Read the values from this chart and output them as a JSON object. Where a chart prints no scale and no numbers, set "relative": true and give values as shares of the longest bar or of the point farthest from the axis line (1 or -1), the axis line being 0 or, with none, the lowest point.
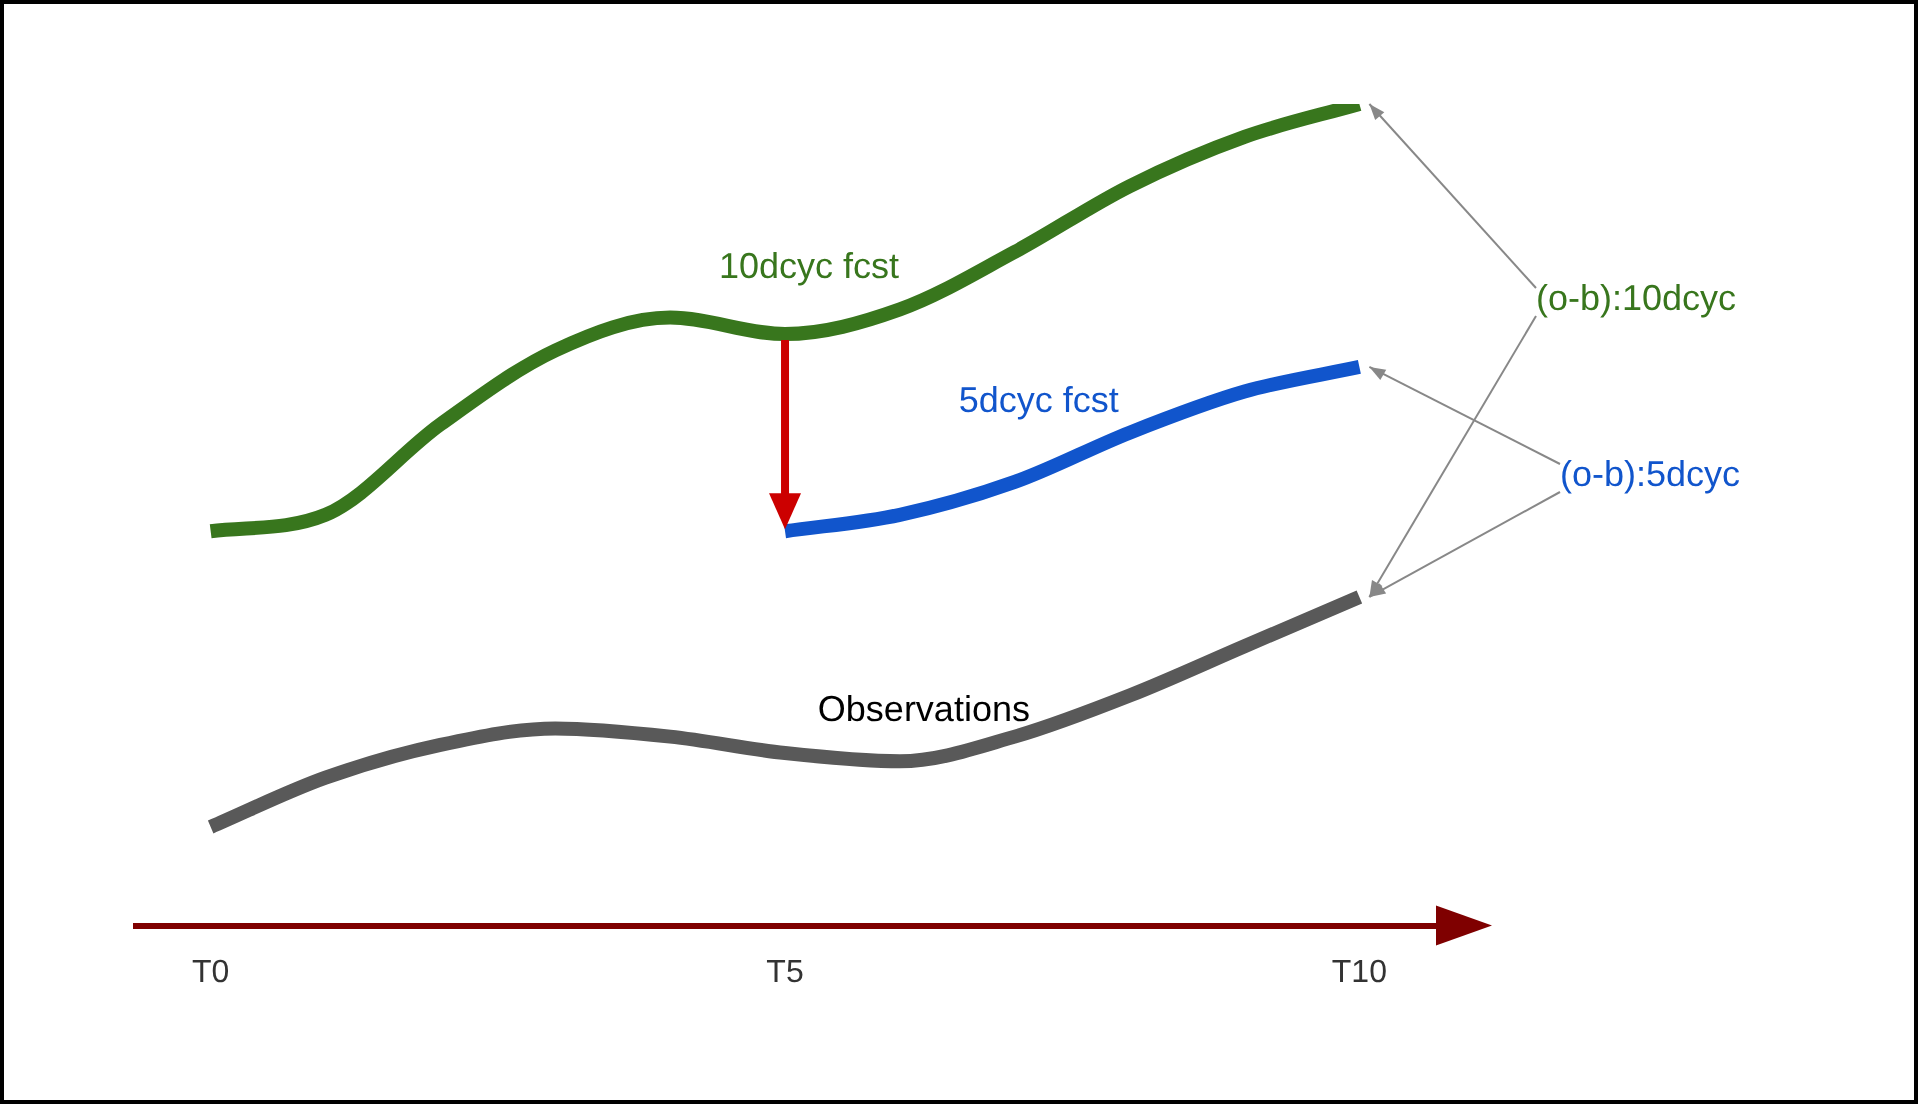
{
  "chart_data": {
    "type": "line",
    "relative": true,
    "categories": [
      "T0",
      null,
      null,
      null,
      null,
      "T5",
      null,
      null,
      null,
      null,
      "T10"
    ],
    "grid": false,
    "legend": false,
    "marker": "none",
    "line_style": "solid",
    "annotations": [
      "(o-b):10dcyc",
      "(o-b):5dcyc"
    ],
    "series": [
      {
        "name": "10dcyc fcst",
        "color": "#38761d",
        "values": [
          0.48,
          0.5,
          0.61,
          0.7,
          0.74,
          0.72,
          0.75,
          0.82,
          0.9,
          0.96,
          1
        ]
      },
      {
        "name": "5dcyc fcst",
        "color": "#1155cc",
        "values": [
          null,
          null,
          null,
          null,
          null,
          0.48,
          0.5,
          0.54,
          0.6,
          0.65,
          0.68
        ]
      },
      {
        "name": "Observations",
        "color": "#595959",
        "values": [
          0.12,
          0.18,
          0.22,
          0.24,
          0.23,
          0.21,
          0.2,
          0.23,
          0.28,
          0.34,
          0.4
        ]
      }
    ]
  }
}
